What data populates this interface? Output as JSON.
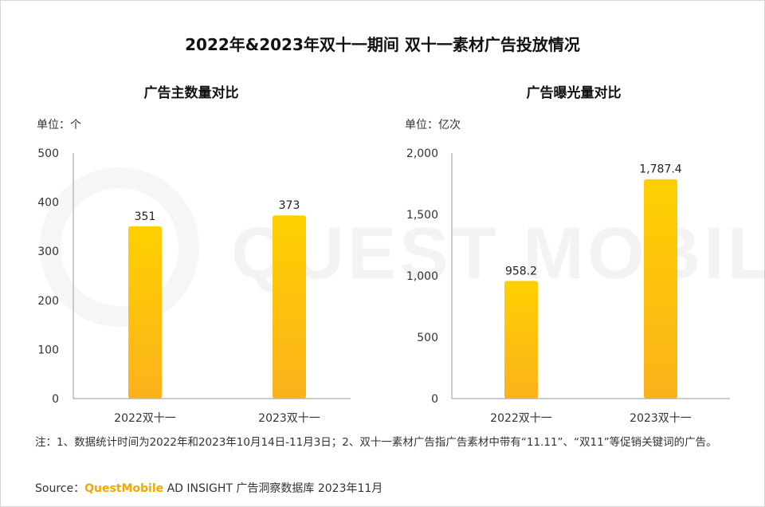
{
  "title": "2022年&2023年双十一期间 双十一素材广告投放情况",
  "colors": {
    "bar_top": "#ffd000",
    "bar_bottom": "#fbb21c",
    "axis": "#999999",
    "brand": "#f5a800"
  },
  "chart_data": [
    {
      "type": "bar",
      "title": "广告主数量对比",
      "unit": "单位：个",
      "categories": [
        "2022双十一",
        "2023双十一"
      ],
      "values": [
        351,
        373
      ],
      "value_labels": [
        "351",
        "373"
      ],
      "ylim": [
        0,
        500
      ],
      "yticks": [
        0,
        100,
        200,
        300,
        400,
        500
      ],
      "ytick_labels": [
        "0",
        "100",
        "200",
        "300",
        "400",
        "500"
      ],
      "grid": false
    },
    {
      "type": "bar",
      "title": "广告曝光量对比",
      "unit": "单位：亿次",
      "categories": [
        "2022双十一",
        "2023双十一"
      ],
      "values": [
        958.2,
        1787.4
      ],
      "value_labels": [
        "958.2",
        "1,787.4"
      ],
      "ylim": [
        0,
        2000
      ],
      "yticks": [
        0,
        500,
        1000,
        1500,
        2000
      ],
      "ytick_labels": [
        "0",
        "500",
        "1,000",
        "1,500",
        "2,000"
      ],
      "grid": false
    }
  ],
  "watermark": "QUEST MOBILE",
  "note": "注：1、数据统计时间为2022年和2023年10月14日-11月3日；2、双十一素材广告指广告素材中带有“11.11”、“双11”等促销关键词的广告。",
  "source": {
    "prefix": "Source：",
    "brand": "QuestMobile",
    "suffix": " AD INSIGHT 广告洞察数据库 2023年11月"
  }
}
